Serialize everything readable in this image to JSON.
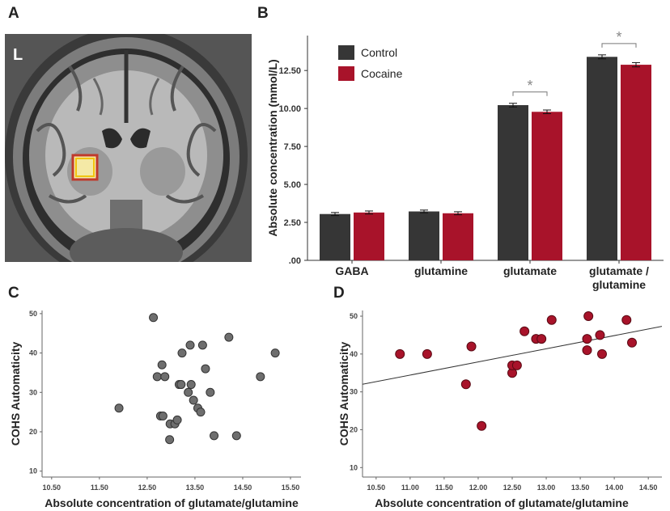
{
  "panels": {
    "a": "A",
    "b": "B",
    "c": "C",
    "d": "D"
  },
  "mri": {
    "orientation_label": "L"
  },
  "chart_data": [
    {
      "type": "bar",
      "panel": "B",
      "categories": [
        "GABA",
        "glutamine",
        "glutamate",
        "glutamate / glutamine"
      ],
      "series": [
        {
          "name": "Control",
          "color": "#363636",
          "values": [
            3.05,
            3.22,
            10.22,
            13.4
          ],
          "errors": [
            0.1,
            0.09,
            0.12,
            0.13
          ]
        },
        {
          "name": "Cocaine",
          "color": "#a8132a",
          "values": [
            3.15,
            3.1,
            9.78,
            12.88
          ],
          "errors": [
            0.1,
            0.1,
            0.12,
            0.14
          ]
        }
      ],
      "ylabel": "Absolute concentration (mmol/L)",
      "ylim": [
        0,
        14.8
      ],
      "yticks": [
        ".00",
        "2.50",
        "5.00",
        "7.50",
        "10.00",
        "12.50"
      ],
      "ytick_values": [
        0,
        2.5,
        5,
        7.5,
        10,
        12.5
      ],
      "significance": [
        "",
        "",
        "*",
        "*"
      ],
      "legend": "top-left"
    },
    {
      "type": "scatter",
      "panel": "C",
      "xlabel": "Absolute concentration of glutamate/glutamine",
      "ylabel": "COHS Automaticity",
      "xlim": [
        10.3,
        15.72
      ],
      "ylim": [
        8.5,
        50.8
      ],
      "xticks": [
        "10.50",
        "11.50",
        "12.50",
        "13.50",
        "14.50",
        "15.50"
      ],
      "xtick_values": [
        10.5,
        11.5,
        12.5,
        13.5,
        14.5,
        15.5
      ],
      "yticks": [
        "10",
        "20",
        "30",
        "40",
        "50"
      ],
      "ytick_values": [
        10,
        20,
        30,
        40,
        50
      ],
      "point_color": "#6e6e6e",
      "points": [
        [
          11.91,
          26
        ],
        [
          12.63,
          49
        ],
        [
          12.71,
          34
        ],
        [
          12.78,
          24
        ],
        [
          12.83,
          24
        ],
        [
          12.81,
          37
        ],
        [
          12.87,
          34
        ],
        [
          12.97,
          18
        ],
        [
          12.98,
          22
        ],
        [
          13.08,
          22
        ],
        [
          13.13,
          23
        ],
        [
          13.17,
          32
        ],
        [
          13.21,
          32
        ],
        [
          13.23,
          40
        ],
        [
          13.36,
          30
        ],
        [
          13.4,
          42
        ],
        [
          13.42,
          32
        ],
        [
          13.47,
          28
        ],
        [
          13.56,
          26
        ],
        [
          13.62,
          25
        ],
        [
          13.66,
          42
        ],
        [
          13.72,
          36
        ],
        [
          13.82,
          30
        ],
        [
          13.9,
          19
        ],
        [
          14.21,
          44
        ],
        [
          14.37,
          19
        ],
        [
          14.87,
          34
        ],
        [
          15.18,
          40
        ]
      ]
    },
    {
      "type": "scatter",
      "panel": "D",
      "xlabel": "Absolute concentration of glutamate/glutamine",
      "ylabel": "COHS Automaticity",
      "xlim": [
        10.3,
        14.7
      ],
      "ylim": [
        7.5,
        51.5
      ],
      "xticks": [
        "10.50",
        "11.00",
        "11.50",
        "12.00",
        "12.50",
        "13.00",
        "13.50",
        "14.00",
        "14.50"
      ],
      "xtick_values": [
        10.5,
        11,
        11.5,
        12,
        12.5,
        13,
        13.5,
        14,
        14.5
      ],
      "yticks": [
        "10",
        "20",
        "30",
        "40",
        "50"
      ],
      "ytick_values": [
        10,
        20,
        30,
        40,
        50
      ],
      "point_color": "#a8132a",
      "trendline": {
        "x": [
          10.3,
          14.7
        ],
        "y": [
          32,
          47.3
        ]
      },
      "points": [
        [
          10.85,
          40
        ],
        [
          11.25,
          40
        ],
        [
          11.82,
          32
        ],
        [
          11.9,
          42
        ],
        [
          12.05,
          21
        ],
        [
          12.5,
          35
        ],
        [
          12.5,
          37
        ],
        [
          12.57,
          37
        ],
        [
          12.68,
          46
        ],
        [
          12.85,
          44
        ],
        [
          12.93,
          44
        ],
        [
          13.08,
          49
        ],
        [
          13.6,
          44
        ],
        [
          13.6,
          41
        ],
        [
          13.62,
          50
        ],
        [
          13.79,
          45
        ],
        [
          13.82,
          40
        ],
        [
          14.18,
          49
        ],
        [
          14.26,
          43
        ]
      ]
    }
  ]
}
